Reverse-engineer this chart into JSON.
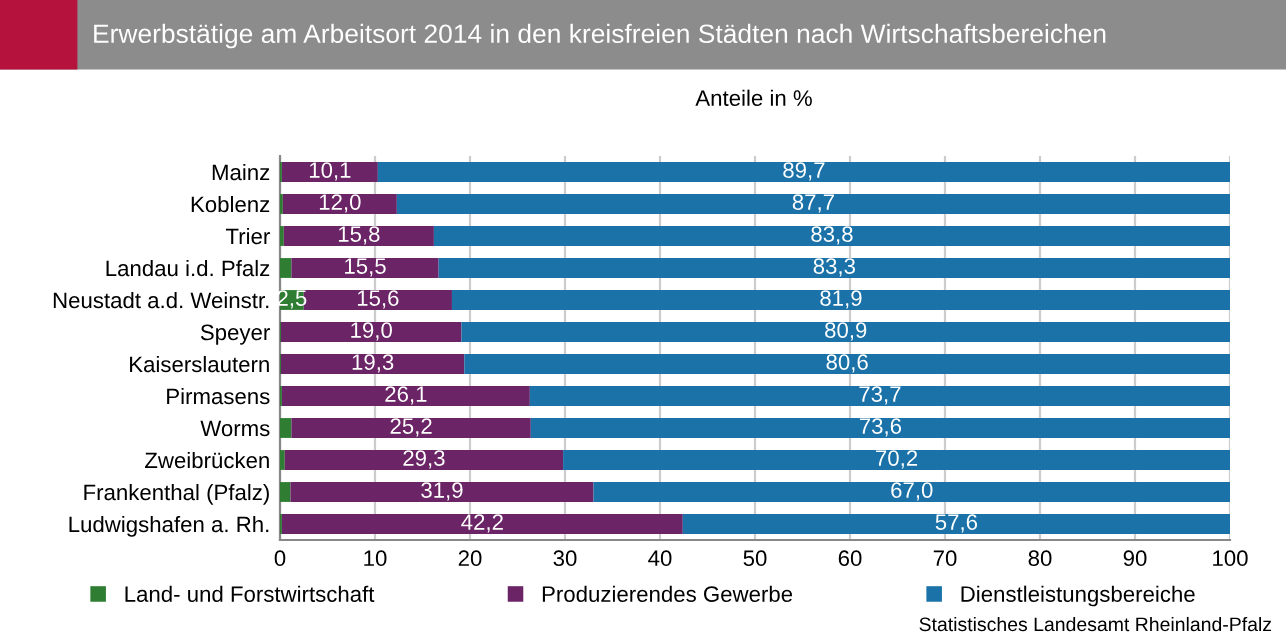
{
  "chart_data": {
    "type": "bar",
    "orientation": "horizontal",
    "stacked": true,
    "title": "Erwerbstätige am Arbeitsort 2014 in den kreisfreien Städten nach Wirtschaftsbereichen",
    "subtitle": "Anteile in %",
    "categories": [
      "Mainz",
      "Koblenz",
      "Trier",
      "Landau i.d. Pfalz",
      "Neustadt a.d. Weinstr.",
      "Speyer",
      "Kaiserslautern",
      "Pirmasens",
      "Worms",
      "Zweibrücken",
      "Frankenthal (Pfalz)",
      "Ludwigshafen a. Rh."
    ],
    "series": [
      {
        "name": "Land- und Forstwirtschaft",
        "color": "#2e7d32",
        "values": [
          0.2,
          0.3,
          0.4,
          1.2,
          2.5,
          0.1,
          0.1,
          0.2,
          1.2,
          0.5,
          1.1,
          0.2
        ],
        "value_labels": [
          null,
          null,
          null,
          null,
          "2,5",
          null,
          null,
          null,
          null,
          null,
          null,
          null
        ]
      },
      {
        "name": "Produzierendes Gewerbe",
        "color": "#6b2466",
        "values": [
          10.1,
          12.0,
          15.8,
          15.5,
          15.6,
          19.0,
          19.3,
          26.1,
          25.2,
          29.3,
          31.9,
          42.2
        ],
        "value_labels": [
          "10,1",
          "12,0",
          "15,8",
          "15,5",
          "15,6",
          "19,0",
          "19,3",
          "26,1",
          "25,2",
          "29,3",
          "31,9",
          "42,2"
        ]
      },
      {
        "name": "Dienstleistungsbereiche",
        "color": "#1a72a8",
        "values": [
          89.7,
          87.7,
          83.8,
          83.3,
          81.9,
          80.9,
          80.6,
          73.7,
          73.6,
          70.2,
          67.0,
          57.6
        ],
        "value_labels": [
          "89,7",
          "87,7",
          "83,8",
          "83,3",
          "81,9",
          "80,9",
          "80,6",
          "73,7",
          "73,6",
          "70,2",
          "67,0",
          "57,6"
        ]
      }
    ],
    "xlim": [
      0,
      100
    ],
    "xticks": [
      0,
      10,
      20,
      30,
      40,
      50,
      60,
      70,
      80,
      90,
      100
    ],
    "grid": "x",
    "legend": "bottom",
    "annotations": [
      "Statistisches Landesamt Rheinland-Pfalz"
    ]
  }
}
